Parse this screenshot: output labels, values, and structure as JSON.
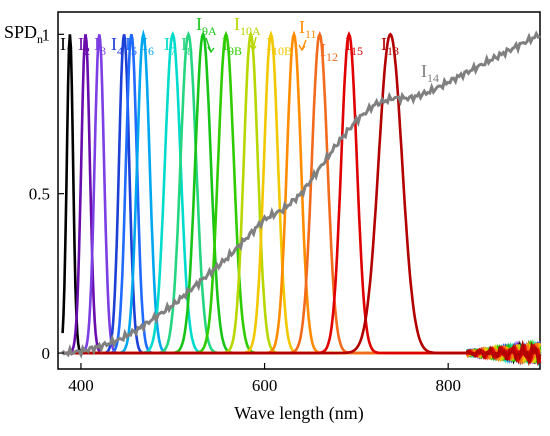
{
  "chart_data": {
    "type": "line",
    "title": "",
    "xlabel": "Wave length (nm)",
    "ylabel_main": "SPD",
    "ylabel_sub": "n",
    "xlim": [
      375,
      900
    ],
    "ylim": [
      -0.05,
      1.07
    ],
    "x_ticks": [
      {
        "value": 400,
        "label": "400"
      },
      {
        "value": 600,
        "label": "600"
      },
      {
        "value": 800,
        "label": "800"
      }
    ],
    "y_ticks": [
      {
        "value": 0,
        "label": "0"
      },
      {
        "value": 0.5,
        "label": "0.5"
      },
      {
        "value": 1,
        "label": "1"
      }
    ],
    "grid": false,
    "legend": "none",
    "series": [
      {
        "name": "I1",
        "label_main": "I",
        "label_sub": "1",
        "peak": 388,
        "fwhm": 8,
        "color": "#000000"
      },
      {
        "name": "I2",
        "label_main": "I",
        "label_sub": "2",
        "peak": 405,
        "fwhm": 11,
        "color": "#6a0dad"
      },
      {
        "name": "I3",
        "label_main": "I",
        "label_sub": "3",
        "peak": 420,
        "fwhm": 12,
        "color": "#7b3fe4"
      },
      {
        "name": "I4",
        "label_main": "I",
        "label_sub": "4",
        "peak": 447,
        "fwhm": 13,
        "color": "#1c3fd6"
      },
      {
        "name": "I5",
        "label_main": "I",
        "label_sub": "5",
        "peak": 455,
        "fwhm": 14,
        "color": "#1f6bff"
      },
      {
        "name": "I6",
        "label_main": "I",
        "label_sub": "6",
        "peak": 468,
        "fwhm": 16,
        "color": "#00a6ee"
      },
      {
        "name": "I7",
        "label_main": "I",
        "label_sub": "7",
        "peak": 500,
        "fwhm": 20,
        "color": "#00dccc"
      },
      {
        "name": "I8",
        "label_main": "I",
        "label_sub": "8",
        "peak": 517,
        "fwhm": 20,
        "color": "#25d680"
      },
      {
        "name": "I9A",
        "label_main": "I",
        "label_sub": "9A",
        "peak": 533,
        "fwhm": 20,
        "color": "#19c419"
      },
      {
        "name": "I9B",
        "label_main": "I",
        "label_sub": "9B",
        "peak": 558,
        "fwhm": 20,
        "color": "#2ecc00"
      },
      {
        "name": "I10A",
        "label_main": "I",
        "label_sub": "10A",
        "peak": 585,
        "fwhm": 18,
        "color": "#b8d600"
      },
      {
        "name": "I10B",
        "label_main": "I",
        "label_sub": "10B",
        "peak": 607,
        "fwhm": 18,
        "color": "#f2c800"
      },
      {
        "name": "I11",
        "label_main": "I",
        "label_sub": "11",
        "peak": 632,
        "fwhm": 18,
        "color": "#ff8c00"
      },
      {
        "name": "I12",
        "label_main": "I",
        "label_sub": "12",
        "peak": 660,
        "fwhm": 20,
        "color": "#f26b1d"
      },
      {
        "name": "I15",
        "label_main": "I",
        "label_sub": "15",
        "peak": 692,
        "fwhm": 20,
        "color": "#e00000"
      },
      {
        "name": "I13",
        "label_main": "I",
        "label_sub": "13",
        "peak": 737,
        "fwhm": 30,
        "color": "#b30000"
      },
      {
        "name": "I14",
        "label_main": "I",
        "label_sub": "14",
        "type": "broadband",
        "color": "#808080",
        "points": [
          [
            380,
            0
          ],
          [
            400,
            0.005
          ],
          [
            420,
            0.02
          ],
          [
            440,
            0.04
          ],
          [
            460,
            0.07
          ],
          [
            480,
            0.11
          ],
          [
            500,
            0.15
          ],
          [
            520,
            0.2
          ],
          [
            540,
            0.25
          ],
          [
            560,
            0.3
          ],
          [
            580,
            0.36
          ],
          [
            600,
            0.42
          ],
          [
            620,
            0.45
          ],
          [
            640,
            0.5
          ],
          [
            660,
            0.58
          ],
          [
            680,
            0.66
          ],
          [
            700,
            0.73
          ],
          [
            720,
            0.78
          ],
          [
            740,
            0.8
          ],
          [
            760,
            0.8
          ],
          [
            780,
            0.82
          ],
          [
            800,
            0.85
          ],
          [
            820,
            0.88
          ],
          [
            840,
            0.91
          ],
          [
            860,
            0.94
          ],
          [
            880,
            0.97
          ],
          [
            900,
            1.0
          ]
        ]
      }
    ]
  }
}
